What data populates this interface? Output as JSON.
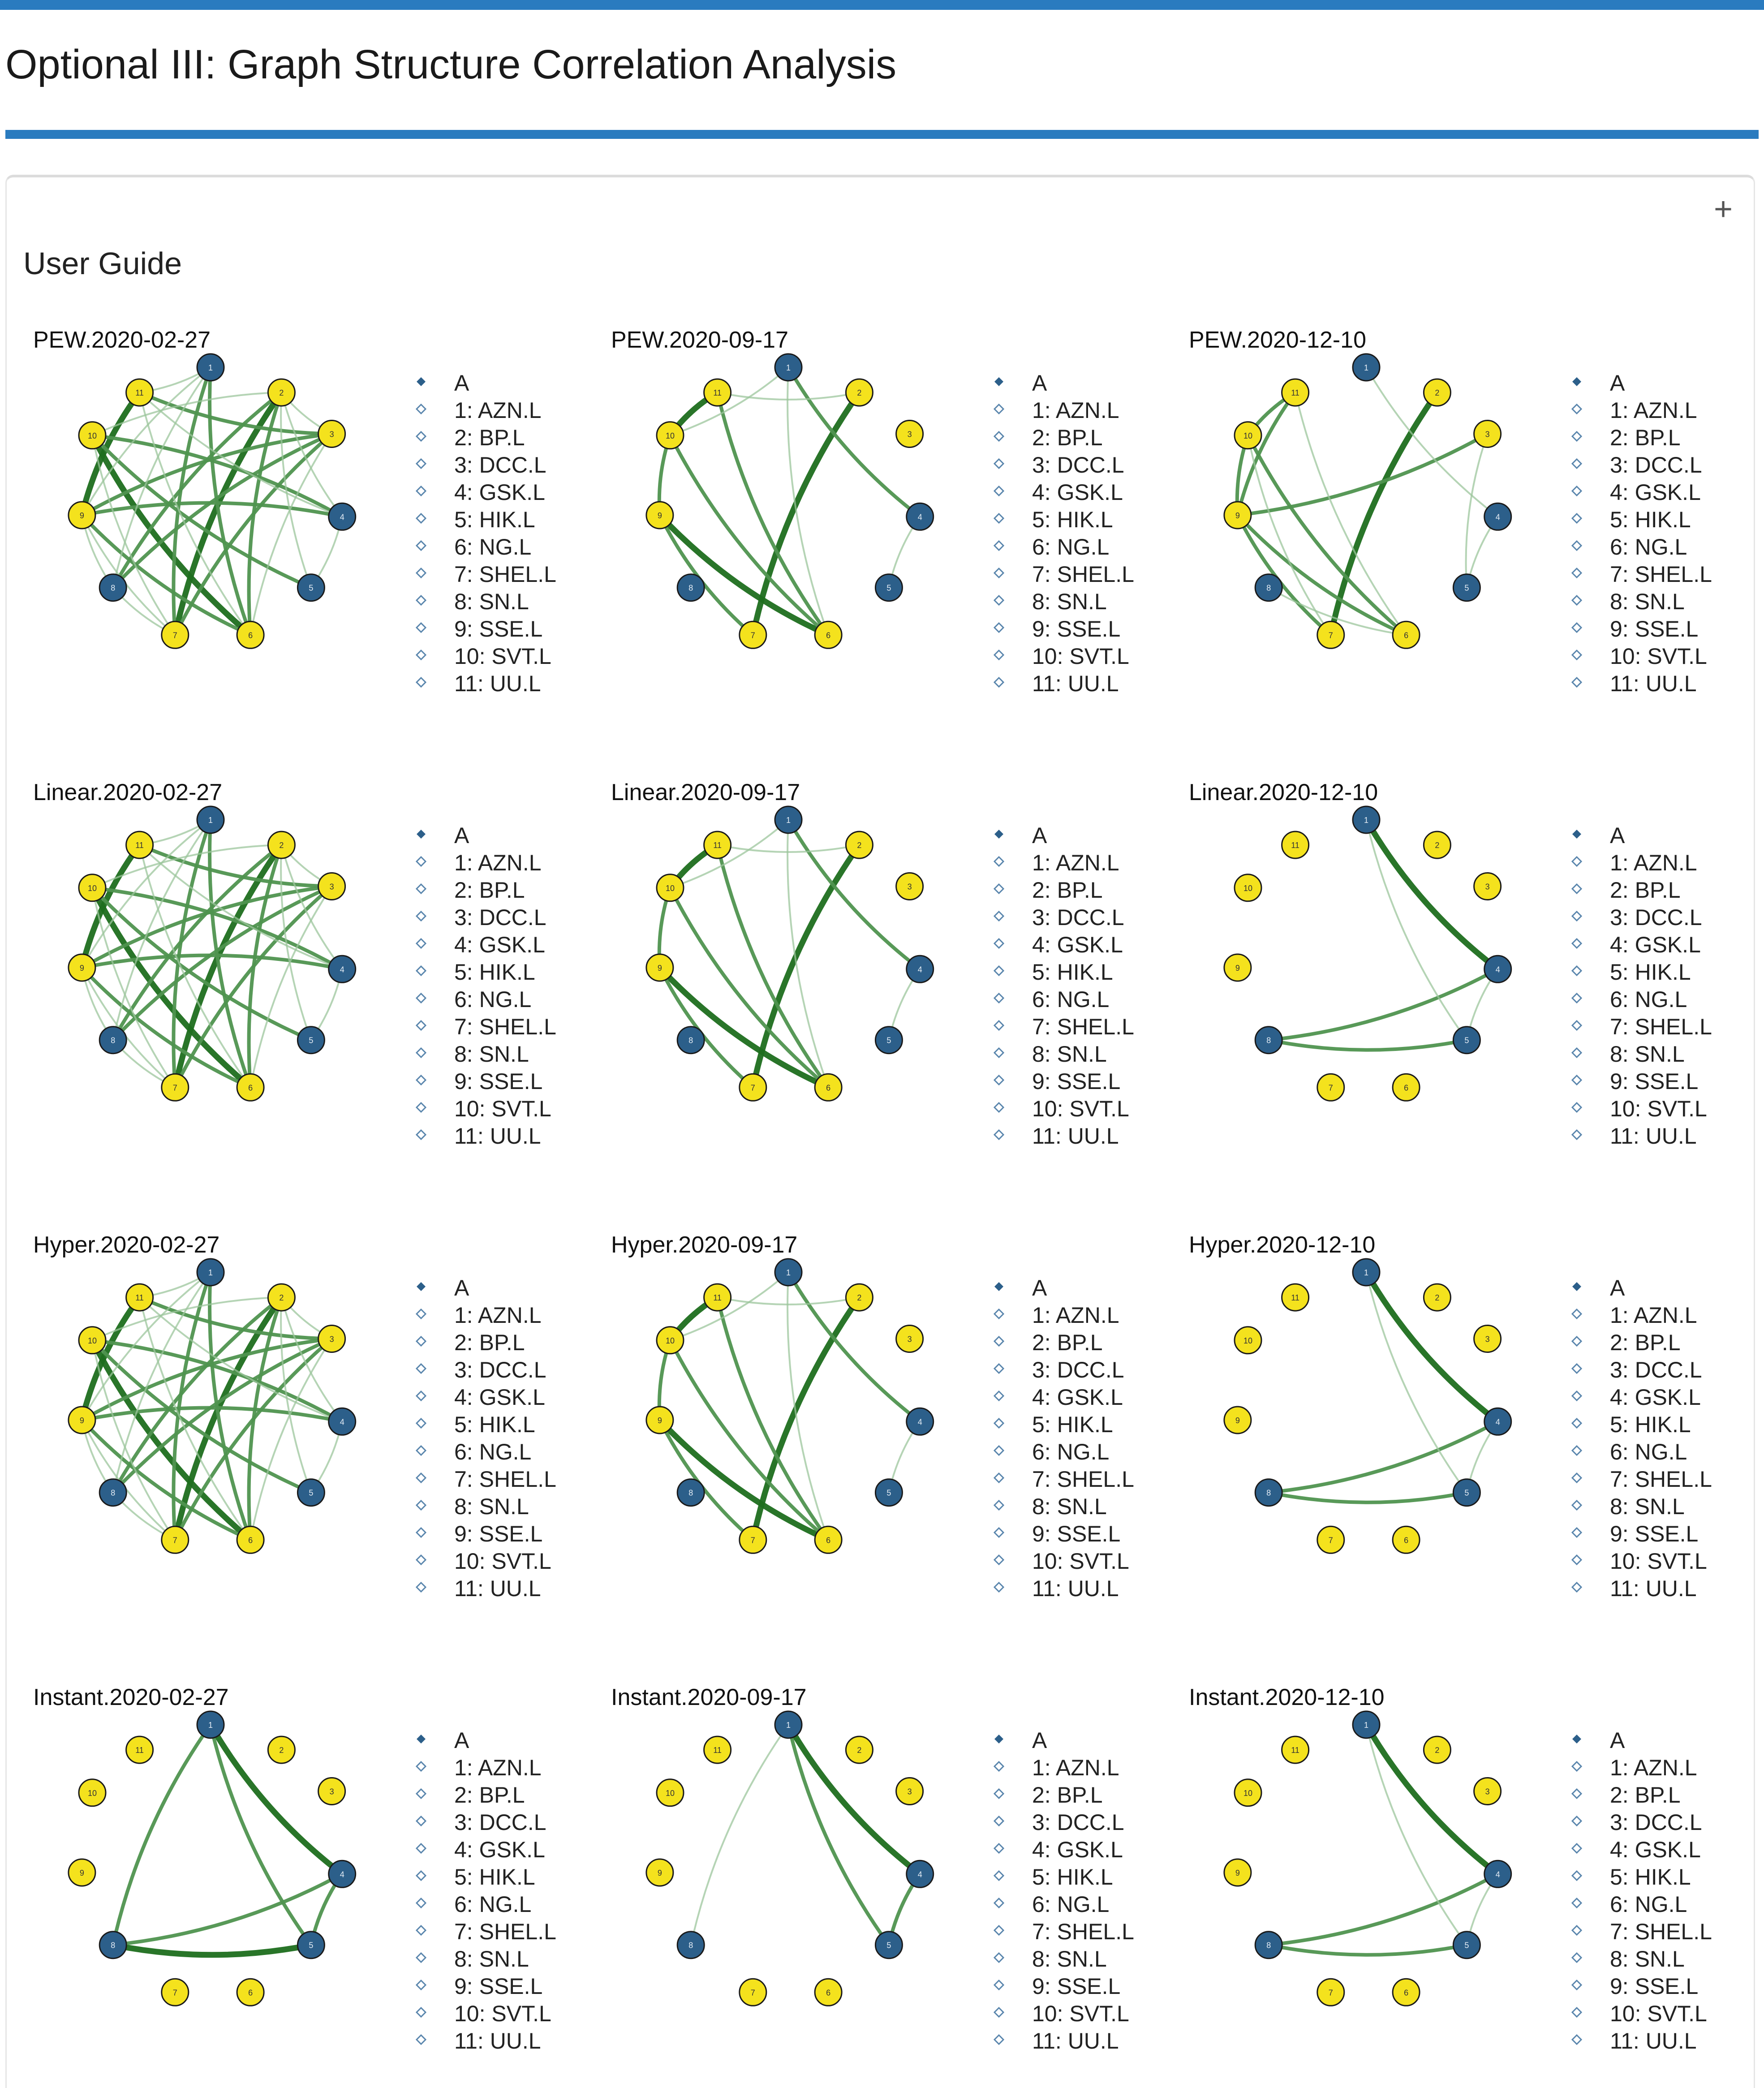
{
  "page": {
    "title": "Optional III: Graph Structure Correlation Analysis",
    "expand_symbol": "+"
  },
  "user_guide": {
    "title": "User Guide"
  },
  "legend": {
    "header": "A",
    "items": [
      "1: AZN.L",
      "2: BP.L",
      "3: DCC.L",
      "4: GSK.L",
      "5: HIK.L",
      "6: NG.L",
      "7: SHEL.L",
      "8: SN.L",
      "9: SSE.L",
      "10: SVT.L",
      "11: UU.L"
    ]
  },
  "colors": {
    "accent_rule": "#2a7bbf",
    "node_blue": "#2c5f8a",
    "node_yellow": "#f4e21d",
    "edge_dark": "#1e6e1e",
    "edge_mid": "#4f944f",
    "edge_light": "#9cc59c"
  },
  "node_groups": {
    "blue_default": [
      1,
      4,
      5,
      8
    ],
    "blue_pew_0917": [
      1,
      4,
      5,
      8
    ]
  },
  "graphs": [
    {
      "title": "PEW.2020-02-27",
      "blue": [
        1,
        4,
        5,
        8
      ],
      "edges": [
        [
          10,
          6,
          3
        ],
        [
          11,
          9,
          3
        ],
        [
          2,
          7,
          3
        ],
        [
          10,
          5,
          2
        ],
        [
          1,
          6,
          2
        ],
        [
          1,
          7,
          2
        ],
        [
          2,
          8,
          2
        ],
        [
          3,
          9,
          2
        ],
        [
          4,
          9,
          2
        ],
        [
          4,
          10,
          2
        ],
        [
          2,
          6,
          2
        ],
        [
          3,
          8,
          2
        ],
        [
          3,
          7,
          2
        ],
        [
          9,
          6,
          2
        ],
        [
          11,
          3,
          2
        ],
        [
          2,
          4,
          1
        ],
        [
          10,
          7,
          1
        ],
        [
          9,
          8,
          1
        ],
        [
          9,
          7,
          1
        ],
        [
          11,
          6,
          1
        ],
        [
          1,
          9,
          1
        ],
        [
          8,
          7,
          1
        ],
        [
          3,
          6,
          1
        ],
        [
          2,
          3,
          1
        ],
        [
          11,
          1,
          1
        ],
        [
          2,
          10,
          1
        ],
        [
          5,
          4,
          1
        ],
        [
          1,
          8,
          1
        ],
        [
          11,
          4,
          1
        ],
        [
          2,
          5,
          1
        ]
      ]
    },
    {
      "title": "PEW.2020-09-17",
      "blue": [
        1,
        4,
        5,
        8
      ],
      "edges": [
        [
          11,
          10,
          3
        ],
        [
          9,
          6,
          3
        ],
        [
          2,
          7,
          3
        ],
        [
          1,
          4,
          2
        ],
        [
          11,
          6,
          2
        ],
        [
          10,
          6,
          2
        ],
        [
          10,
          9,
          2
        ],
        [
          9,
          7,
          2
        ],
        [
          4,
          5,
          1
        ],
        [
          11,
          2,
          1
        ],
        [
          1,
          6,
          1
        ],
        [
          10,
          1,
          1
        ]
      ]
    },
    {
      "title": "PEW.2020-12-10",
      "blue": [
        1,
        4,
        5,
        8
      ],
      "edges": [
        [
          2,
          7,
          3
        ],
        [
          11,
          10,
          2
        ],
        [
          10,
          6,
          2
        ],
        [
          11,
          9,
          2
        ],
        [
          9,
          3,
          2
        ],
        [
          10,
          9,
          2
        ],
        [
          9,
          6,
          2
        ],
        [
          9,
          7,
          2
        ],
        [
          10,
          7,
          1
        ],
        [
          1,
          4,
          1
        ],
        [
          11,
          6,
          1
        ],
        [
          8,
          6,
          1
        ],
        [
          3,
          5,
          1
        ],
        [
          4,
          5,
          1
        ]
      ]
    },
    {
      "title": "Linear.2020-02-27",
      "blue": [
        1,
        4,
        5,
        8
      ],
      "edges": [
        [
          10,
          6,
          3
        ],
        [
          11,
          9,
          3
        ],
        [
          2,
          7,
          3
        ],
        [
          10,
          5,
          2
        ],
        [
          1,
          6,
          2
        ],
        [
          1,
          7,
          2
        ],
        [
          2,
          8,
          2
        ],
        [
          3,
          9,
          2
        ],
        [
          4,
          9,
          2
        ],
        [
          4,
          10,
          2
        ],
        [
          2,
          6,
          2
        ],
        [
          3,
          8,
          2
        ],
        [
          3,
          7,
          2
        ],
        [
          9,
          6,
          2
        ],
        [
          11,
          3,
          2
        ],
        [
          2,
          4,
          1
        ],
        [
          10,
          7,
          1
        ],
        [
          9,
          8,
          1
        ],
        [
          9,
          7,
          1
        ],
        [
          11,
          6,
          1
        ],
        [
          1,
          9,
          1
        ],
        [
          8,
          7,
          1
        ],
        [
          3,
          6,
          1
        ],
        [
          2,
          3,
          1
        ],
        [
          11,
          1,
          1
        ],
        [
          2,
          10,
          1
        ],
        [
          5,
          4,
          1
        ],
        [
          1,
          8,
          1
        ],
        [
          11,
          4,
          1
        ],
        [
          2,
          5,
          1
        ]
      ]
    },
    {
      "title": "Linear.2020-09-17",
      "blue": [
        1,
        4,
        5,
        8
      ],
      "edges": [
        [
          11,
          10,
          3
        ],
        [
          9,
          6,
          3
        ],
        [
          2,
          7,
          3
        ],
        [
          1,
          4,
          2
        ],
        [
          11,
          6,
          2
        ],
        [
          10,
          6,
          2
        ],
        [
          10,
          9,
          2
        ],
        [
          9,
          7,
          2
        ],
        [
          4,
          5,
          1
        ],
        [
          11,
          2,
          1
        ],
        [
          1,
          6,
          1
        ],
        [
          10,
          1,
          1
        ]
      ]
    },
    {
      "title": "Linear.2020-12-10",
      "blue": [
        1,
        4,
        5,
        8
      ],
      "edges": [
        [
          1,
          4,
          3
        ],
        [
          8,
          4,
          2
        ],
        [
          8,
          5,
          2
        ],
        [
          1,
          5,
          1
        ],
        [
          4,
          5,
          1
        ]
      ]
    },
    {
      "title": "Hyper.2020-02-27",
      "blue": [
        1,
        4,
        5,
        8
      ],
      "edges": [
        [
          10,
          6,
          3
        ],
        [
          11,
          9,
          3
        ],
        [
          2,
          7,
          3
        ],
        [
          10,
          5,
          2
        ],
        [
          1,
          6,
          2
        ],
        [
          1,
          7,
          2
        ],
        [
          2,
          8,
          2
        ],
        [
          3,
          9,
          2
        ],
        [
          4,
          9,
          2
        ],
        [
          4,
          10,
          2
        ],
        [
          2,
          6,
          2
        ],
        [
          3,
          8,
          2
        ],
        [
          3,
          7,
          2
        ],
        [
          9,
          6,
          2
        ],
        [
          11,
          3,
          2
        ],
        [
          2,
          4,
          1
        ],
        [
          10,
          7,
          1
        ],
        [
          9,
          8,
          1
        ],
        [
          9,
          7,
          1
        ],
        [
          11,
          6,
          1
        ],
        [
          1,
          9,
          1
        ],
        [
          8,
          7,
          1
        ],
        [
          3,
          6,
          1
        ],
        [
          2,
          3,
          1
        ],
        [
          11,
          1,
          1
        ],
        [
          2,
          10,
          1
        ],
        [
          5,
          4,
          1
        ],
        [
          1,
          8,
          1
        ],
        [
          11,
          4,
          1
        ],
        [
          2,
          5,
          1
        ]
      ]
    },
    {
      "title": "Hyper.2020-09-17",
      "blue": [
        1,
        4,
        5,
        8
      ],
      "edges": [
        [
          11,
          10,
          3
        ],
        [
          9,
          6,
          3
        ],
        [
          2,
          7,
          3
        ],
        [
          1,
          4,
          2
        ],
        [
          11,
          6,
          2
        ],
        [
          10,
          6,
          2
        ],
        [
          10,
          9,
          2
        ],
        [
          9,
          7,
          2
        ],
        [
          4,
          5,
          1
        ],
        [
          11,
          2,
          1
        ],
        [
          1,
          6,
          1
        ],
        [
          10,
          1,
          1
        ]
      ]
    },
    {
      "title": "Hyper.2020-12-10",
      "blue": [
        1,
        4,
        5,
        8
      ],
      "edges": [
        [
          1,
          4,
          3
        ],
        [
          8,
          4,
          2
        ],
        [
          8,
          5,
          2
        ],
        [
          1,
          5,
          1
        ],
        [
          4,
          5,
          1
        ]
      ]
    },
    {
      "title": "Instant.2020-02-27",
      "blue": [
        1,
        4,
        5,
        8
      ],
      "edges": [
        [
          1,
          4,
          3
        ],
        [
          8,
          5,
          3
        ],
        [
          1,
          8,
          2
        ],
        [
          8,
          4,
          2
        ],
        [
          1,
          5,
          2
        ],
        [
          4,
          5,
          2
        ]
      ]
    },
    {
      "title": "Instant.2020-09-17",
      "blue": [
        1,
        4,
        5,
        8
      ],
      "edges": [
        [
          1,
          4,
          3
        ],
        [
          1,
          5,
          2
        ],
        [
          4,
          5,
          2
        ],
        [
          1,
          8,
          1
        ]
      ]
    },
    {
      "title": "Instant.2020-12-10",
      "blue": [
        1,
        4,
        5,
        8
      ],
      "edges": [
        [
          1,
          4,
          3
        ],
        [
          8,
          4,
          2
        ],
        [
          8,
          5,
          2
        ],
        [
          1,
          5,
          1
        ],
        [
          4,
          5,
          1
        ]
      ]
    }
  ]
}
